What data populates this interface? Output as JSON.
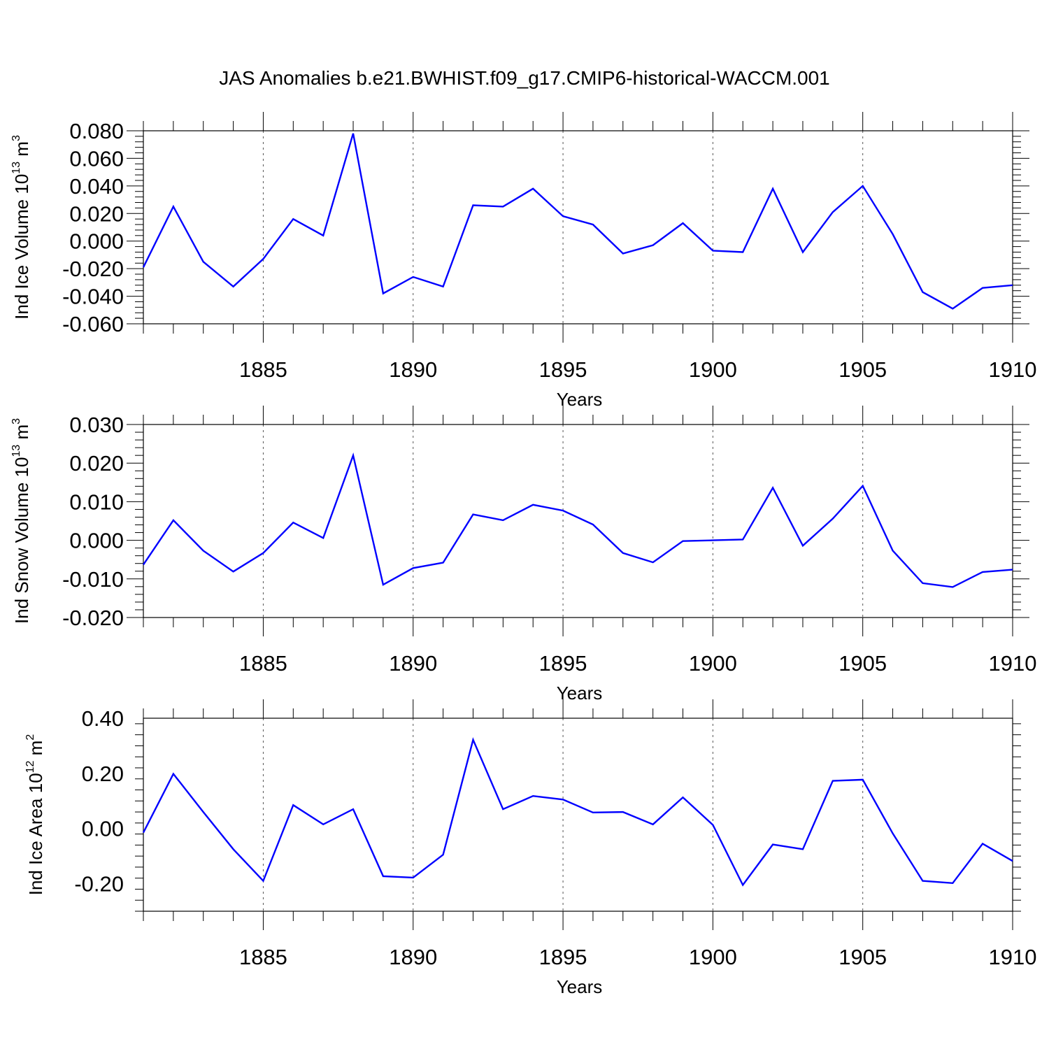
{
  "figure": {
    "title": "JAS Anomalies b.e21.BWHIST.f09_g17.CMIP6-historical-WACCM.001",
    "line_color": "#0000ff",
    "grid_color": "#555555"
  },
  "chart_data": [
    {
      "type": "line",
      "xlabel": "Years",
      "ylabel_parts": {
        "prefix": "Ind Ice Volume 10",
        "exponent": "13",
        "unit": " m",
        "unit_exponent": "3"
      },
      "xlim": [
        1881,
        1910
      ],
      "ylim": [
        -0.06,
        0.08
      ],
      "xticks": [
        1885,
        1890,
        1895,
        1900,
        1905,
        1910
      ],
      "yticks": [
        -0.06,
        -0.04,
        -0.02,
        0.0,
        0.02,
        0.04,
        0.06,
        0.08
      ],
      "ytick_labels": [
        "-0.060",
        "-0.040",
        "-0.020",
        "0.000",
        "0.020",
        "0.040",
        "0.060",
        "0.080"
      ],
      "grid": "vertical dashed at major x ticks",
      "x": [
        1881,
        1882,
        1883,
        1884,
        1885,
        1886,
        1887,
        1888,
        1889,
        1890,
        1891,
        1892,
        1893,
        1894,
        1895,
        1896,
        1897,
        1898,
        1899,
        1900,
        1901,
        1902,
        1903,
        1904,
        1905,
        1906,
        1907,
        1908,
        1909,
        1910
      ],
      "series": [
        {
          "values": [
            -0.019,
            0.025,
            -0.015,
            -0.033,
            -0.013,
            0.016,
            0.004,
            0.078,
            -0.038,
            -0.026,
            -0.033,
            0.026,
            0.025,
            0.038,
            0.018,
            0.012,
            -0.009,
            -0.003,
            0.013,
            -0.007,
            -0.008,
            0.038,
            -0.008,
            0.021,
            0.04,
            0.005,
            -0.037,
            -0.049,
            -0.034,
            -0.032
          ]
        }
      ]
    },
    {
      "type": "line",
      "xlabel": "Years",
      "ylabel_parts": {
        "prefix": "Ind Snow Volume 10",
        "exponent": "13",
        "unit": " m",
        "unit_exponent": "3"
      },
      "xlim": [
        1881,
        1910
      ],
      "ylim": [
        -0.02,
        0.03
      ],
      "xticks": [
        1885,
        1890,
        1895,
        1900,
        1905,
        1910
      ],
      "yticks": [
        -0.02,
        -0.01,
        0.0,
        0.01,
        0.02,
        0.03
      ],
      "ytick_labels": [
        "-0.020",
        "-0.010",
        "0.000",
        "0.010",
        "0.020",
        "0.030"
      ],
      "grid": "vertical dashed at major x ticks",
      "x": [
        1881,
        1882,
        1883,
        1884,
        1885,
        1886,
        1887,
        1888,
        1889,
        1890,
        1891,
        1892,
        1893,
        1894,
        1895,
        1896,
        1897,
        1898,
        1899,
        1900,
        1901,
        1902,
        1903,
        1904,
        1905,
        1906,
        1907,
        1908,
        1909,
        1910
      ],
      "series": [
        {
          "values": [
            -0.0063,
            0.0052,
            -0.0027,
            -0.0081,
            -0.0033,
            0.0046,
            0.0006,
            0.022,
            -0.0115,
            -0.0072,
            -0.0058,
            0.0067,
            0.0052,
            0.0092,
            0.0077,
            0.0041,
            -0.0033,
            -0.0057,
            -0.0002,
            0.0,
            0.0002,
            0.0136,
            -0.0014,
            0.0056,
            0.0141,
            -0.0027,
            -0.0111,
            -0.0121,
            -0.0082,
            -0.0076
          ]
        }
      ]
    },
    {
      "type": "line",
      "xlabel": "Years",
      "ylabel_parts": {
        "prefix": "Ind Ice Area 10",
        "exponent": "12",
        "unit": " m",
        "unit_exponent": "2"
      },
      "xlim": [
        1881,
        1910
      ],
      "ylim": [
        -0.3,
        0.4
      ],
      "xticks": [
        1885,
        1890,
        1895,
        1900,
        1905,
        1910
      ],
      "yticks": [
        -0.2,
        0.0,
        0.2,
        0.4
      ],
      "ytick_labels": [
        "-0.20",
        "0.00",
        "0.20",
        "0.40"
      ],
      "grid": "vertical dashed at major x ticks",
      "x": [
        1881,
        1882,
        1883,
        1884,
        1885,
        1886,
        1887,
        1888,
        1889,
        1890,
        1891,
        1892,
        1893,
        1894,
        1895,
        1896,
        1897,
        1898,
        1899,
        1900,
        1901,
        1902,
        1903,
        1904,
        1905,
        1906,
        1907,
        1908,
        1909,
        1910
      ],
      "series": [
        {
          "values": [
            -0.015,
            0.198,
            0.06,
            -0.075,
            -0.19,
            0.085,
            0.015,
            0.07,
            -0.173,
            -0.178,
            -0.095,
            0.322,
            0.07,
            0.118,
            0.105,
            0.058,
            0.06,
            0.015,
            0.113,
            0.013,
            -0.205,
            -0.058,
            -0.075,
            0.173,
            0.177,
            -0.018,
            -0.19,
            -0.198,
            -0.055,
            -0.118
          ]
        }
      ]
    }
  ]
}
